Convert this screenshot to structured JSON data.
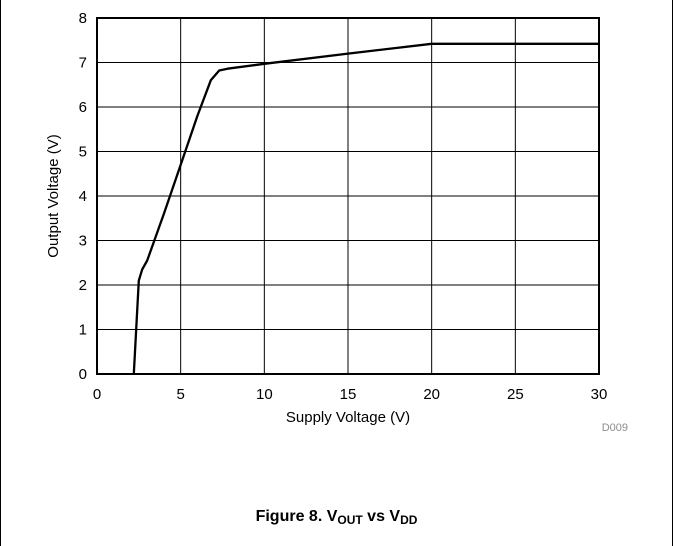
{
  "chart_data": {
    "type": "line",
    "xlabel": "Supply Voltage (V)",
    "ylabel": "Output Voltage (V)",
    "xlim": [
      0,
      30
    ],
    "ylim": [
      0,
      8
    ],
    "x_ticks": [
      0,
      5,
      10,
      15,
      20,
      25,
      30
    ],
    "y_ticks": [
      0,
      1,
      2,
      3,
      4,
      5,
      6,
      7,
      8
    ],
    "grid": true,
    "legend": "none",
    "series": [
      {
        "color": "#000000",
        "x": [
          2.2,
          2.5,
          2.7,
          3.0,
          4.0,
          5.0,
          6.0,
          6.8,
          7.3,
          7.8,
          10,
          15,
          20,
          25,
          30
        ],
        "y": [
          0,
          2.1,
          2.35,
          2.55,
          3.6,
          4.7,
          5.8,
          6.6,
          6.82,
          6.86,
          6.97,
          7.2,
          7.42,
          7.42,
          7.42
        ]
      }
    ],
    "figure_code": "D009"
  },
  "caption": {
    "prefix": "Figure 8. V",
    "sub1": "OUT",
    "middle": " vs V",
    "sub2": "DD"
  }
}
